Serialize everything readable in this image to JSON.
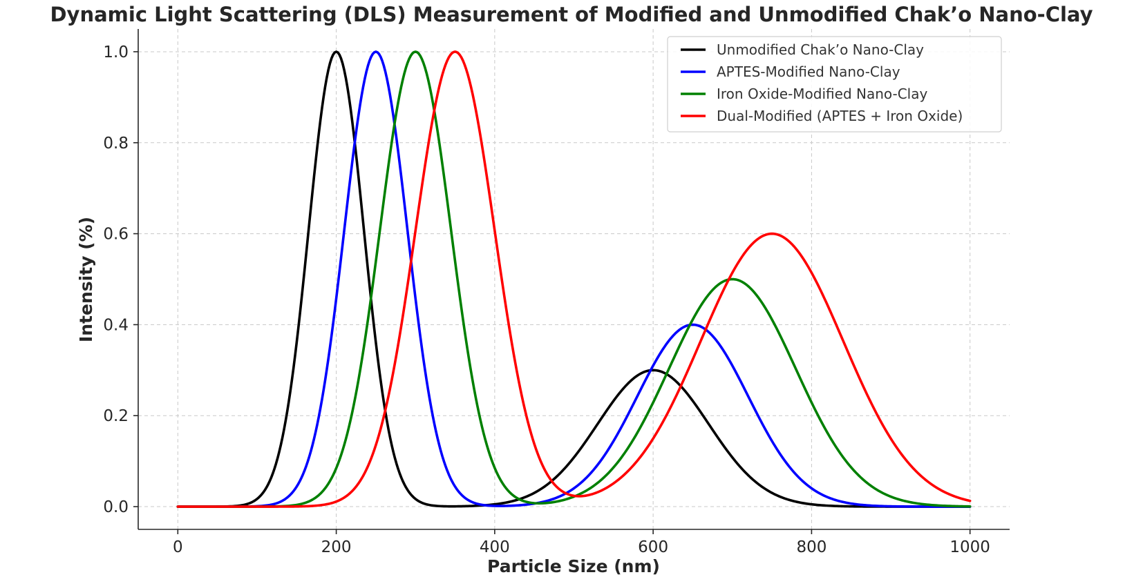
{
  "chart_data": {
    "type": "line",
    "title": "Dynamic Light Scattering (DLS) Measurement of Modified and Unmodified Chak’o Nano-Clay",
    "xlabel": "Particle Size (nm)",
    "ylabel": "Intensity (%)",
    "xlim": [
      -50,
      1050
    ],
    "ylim": [
      -0.05,
      1.05
    ],
    "xticks": [
      0,
      200,
      400,
      600,
      800,
      1000
    ],
    "yticks": [
      0.0,
      0.2,
      0.4,
      0.6,
      0.8,
      1.0
    ],
    "xtick_labels": [
      "0",
      "200",
      "400",
      "600",
      "800",
      "1000"
    ],
    "ytick_labels": [
      "0.0",
      "0.2",
      "0.4",
      "0.6",
      "0.8",
      "1.0"
    ],
    "grid": true,
    "legend_position": "top-right",
    "series": [
      {
        "name": "Unmodified Chak’o Nano-Clay",
        "color": "#000000",
        "peaks": [
          {
            "center": 200,
            "height": 1.0,
            "sigma": 35
          },
          {
            "center": 600,
            "height": 0.3,
            "sigma": 70
          }
        ]
      },
      {
        "name": "APTES-Modified Nano-Clay",
        "color": "#0000ff",
        "peaks": [
          {
            "center": 250,
            "height": 1.0,
            "sigma": 40
          },
          {
            "center": 650,
            "height": 0.4,
            "sigma": 70
          }
        ]
      },
      {
        "name": "Iron Oxide-Modified Nano-Clay",
        "color": "#008000",
        "peaks": [
          {
            "center": 300,
            "height": 1.0,
            "sigma": 45
          },
          {
            "center": 700,
            "height": 0.5,
            "sigma": 80
          }
        ]
      },
      {
        "name": "Dual-Modified (APTES + Iron Oxide)",
        "color": "#ff0000",
        "peaks": [
          {
            "center": 350,
            "height": 1.0,
            "sigma": 50
          },
          {
            "center": 750,
            "height": 0.6,
            "sigma": 90
          }
        ]
      }
    ]
  }
}
